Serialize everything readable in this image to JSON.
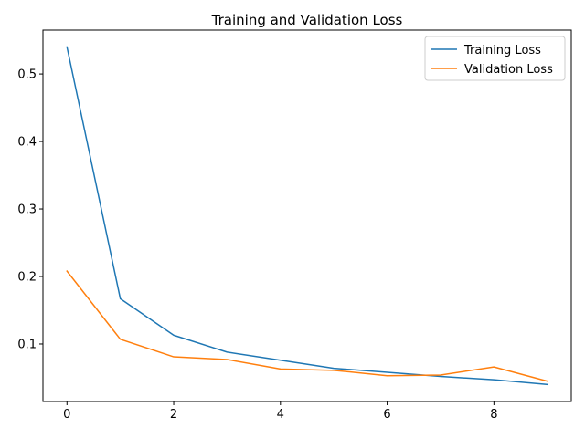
{
  "chart_data": {
    "type": "line",
    "title": "Training and Validation Loss",
    "xlabel": "",
    "ylabel": "",
    "x": [
      0,
      1,
      2,
      3,
      4,
      5,
      6,
      7,
      8,
      9
    ],
    "xlim": [
      -0.45,
      9.45
    ],
    "ylim": [
      0.0148,
      0.565
    ],
    "xticks": [
      0,
      2,
      4,
      6,
      8
    ],
    "yticks": [
      0.1,
      0.2,
      0.3,
      0.4,
      0.5
    ],
    "xtick_labels": [
      "0",
      "2",
      "4",
      "6",
      "8"
    ],
    "ytick_labels": [
      "0.1",
      "0.2",
      "0.3",
      "0.4",
      "0.5"
    ],
    "grid": false,
    "legend": "top-right",
    "series": [
      {
        "name": "Training Loss",
        "color": "#1f77b4",
        "values": [
          0.54,
          0.167,
          0.113,
          0.088,
          0.076,
          0.064,
          0.058,
          0.052,
          0.047,
          0.04
        ]
      },
      {
        "name": "Validation Loss",
        "color": "#ff7f0e",
        "values": [
          0.208,
          0.107,
          0.081,
          0.077,
          0.063,
          0.061,
          0.053,
          0.054,
          0.066,
          0.045
        ]
      }
    ]
  }
}
